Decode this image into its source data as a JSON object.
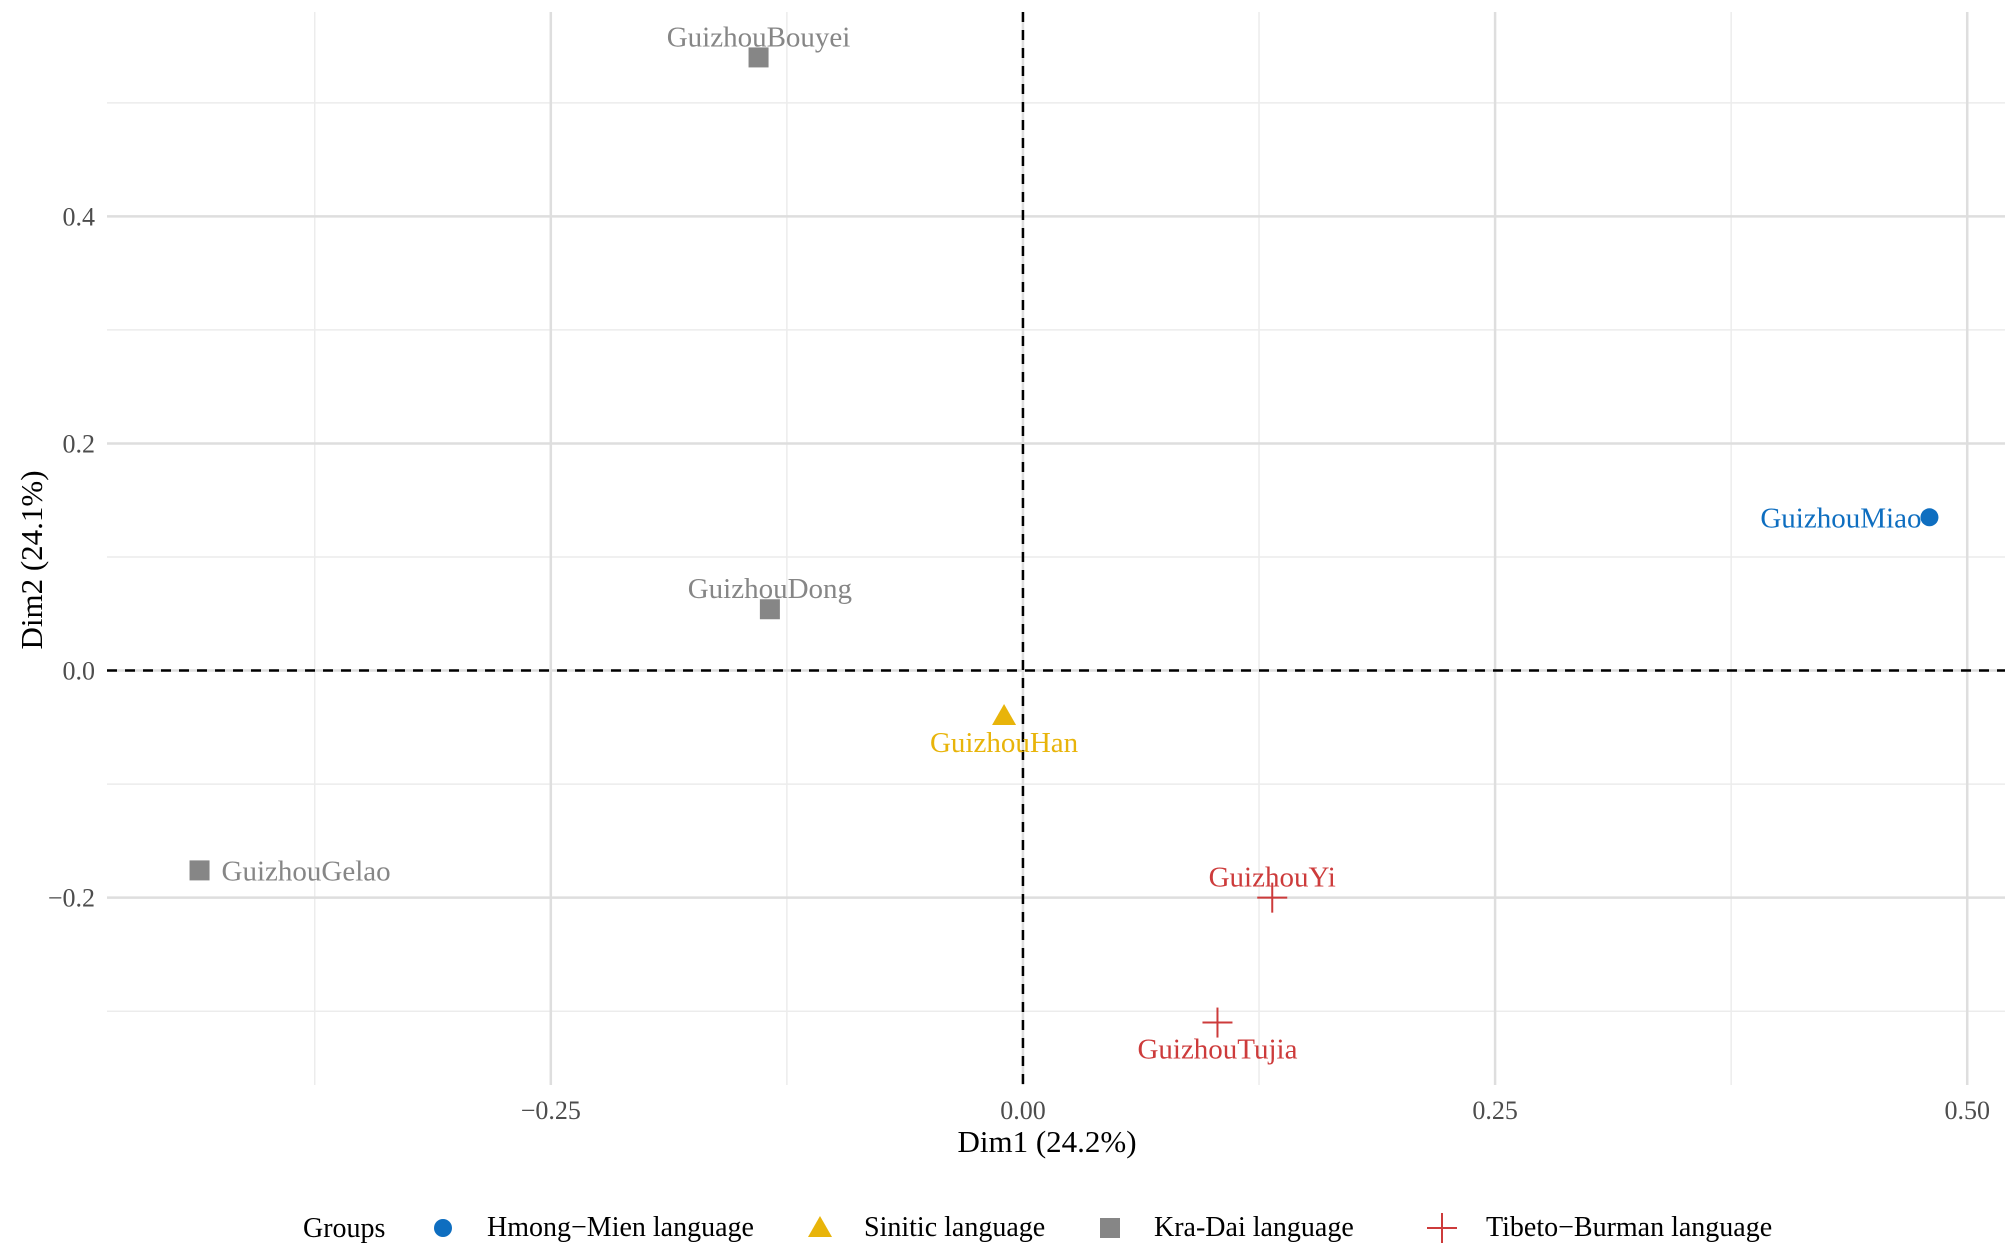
{
  "chart_data": {
    "type": "scatter",
    "xlabel": "Dim1 (24.2%)",
    "ylabel": "Dim2 (24.1%)",
    "xlim": [
      -0.485,
      0.52
    ],
    "ylim": [
      -0.365,
      0.58
    ],
    "x_ticks": [
      -0.25,
      0.0,
      0.25,
      0.5
    ],
    "x_tick_labels": [
      "−0.25",
      "0.00",
      "0.25",
      "0.50"
    ],
    "y_ticks": [
      -0.2,
      0.0,
      0.2,
      0.4
    ],
    "y_tick_labels": [
      "−0.2",
      "0.0",
      "0.2",
      "0.4"
    ],
    "grid": true,
    "reference_lines": {
      "x": 0,
      "y": 0,
      "style": "dashed"
    },
    "legend": {
      "title": "Groups",
      "position": "bottom",
      "items": [
        {
          "label": "Hmong−Mien language",
          "group": "hmong-mien",
          "marker": "circle",
          "color": "#0e6ec0"
        },
        {
          "label": "Sinitic language",
          "group": "sinitic",
          "marker": "triangle",
          "color": "#e8b40a"
        },
        {
          "label": "Kra-Dai language",
          "group": "kra-dai",
          "marker": "square",
          "color": "#868686"
        },
        {
          "label": "Tibeto−Burman language",
          "group": "tibeto-burman",
          "marker": "plus",
          "color": "#cd3b3b"
        }
      ]
    },
    "points": [
      {
        "label": "GuizhouBouyei",
        "x": -0.14,
        "y": 0.54,
        "group": "kra-dai",
        "label_pos": "above"
      },
      {
        "label": "GuizhouDong",
        "x": -0.134,
        "y": 0.054,
        "group": "kra-dai",
        "label_pos": "above"
      },
      {
        "label": "GuizhouGelao",
        "x": -0.436,
        "y": -0.176,
        "group": "kra-dai",
        "label_pos": "right"
      },
      {
        "label": "GuizhouHan",
        "x": -0.01,
        "y": -0.04,
        "group": "sinitic",
        "label_pos": "below"
      },
      {
        "label": "GuizhouMiao",
        "x": 0.48,
        "y": 0.135,
        "group": "hmong-mien",
        "label_pos": "left"
      },
      {
        "label": "GuizhouYi",
        "x": 0.132,
        "y": -0.2,
        "group": "tibeto-burman",
        "label_pos": "above"
      },
      {
        "label": "GuizhouTujia",
        "x": 0.103,
        "y": -0.31,
        "group": "tibeto-burman",
        "label_pos": "below"
      }
    ]
  }
}
